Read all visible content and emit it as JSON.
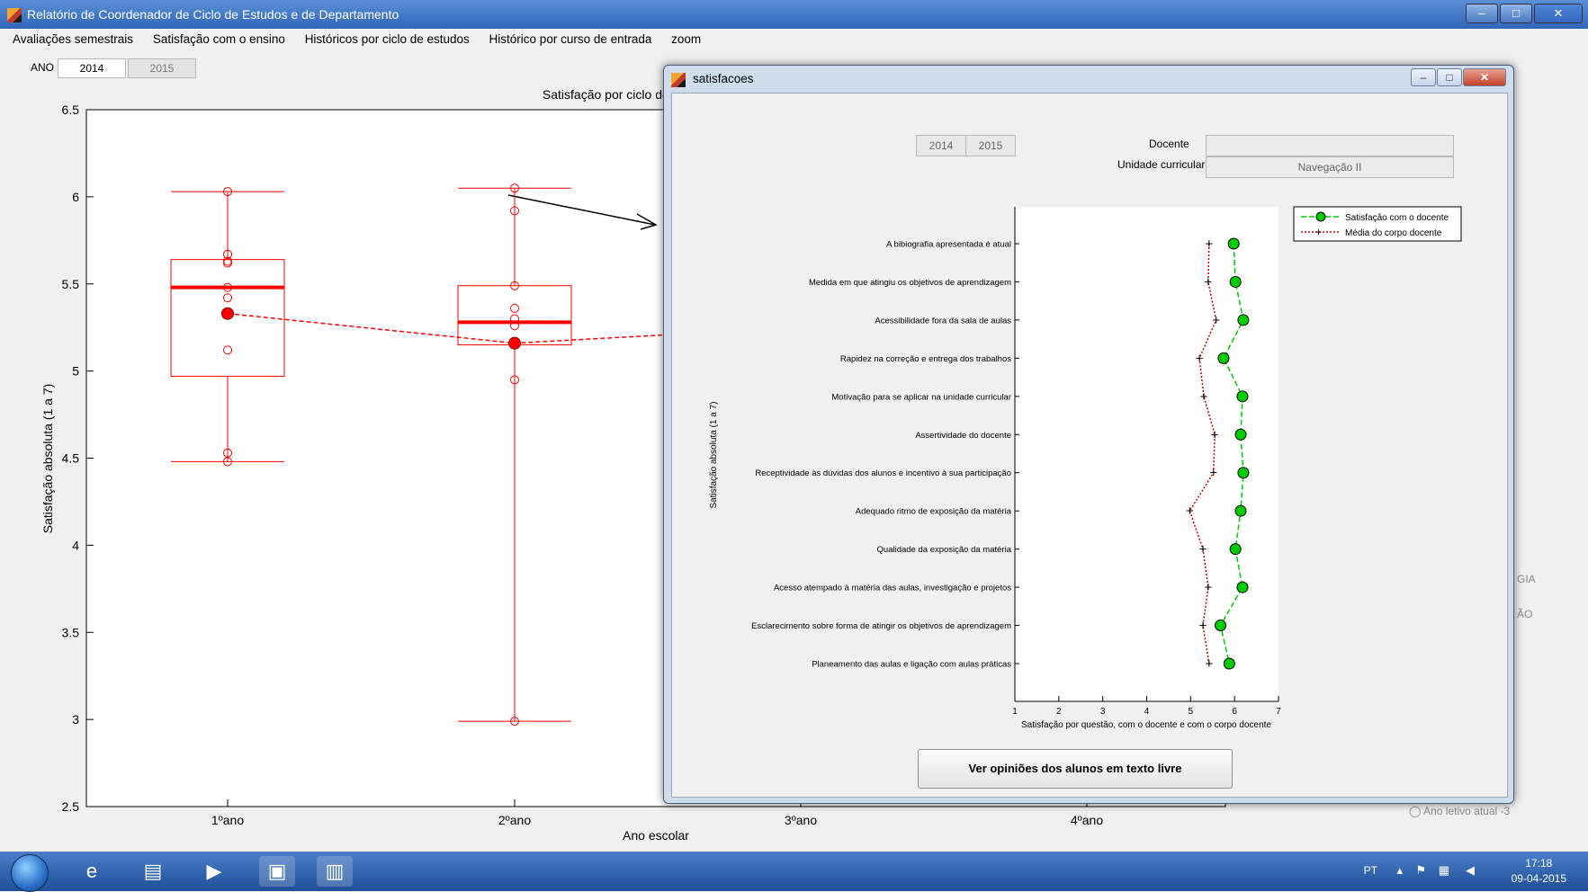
{
  "window": {
    "title": "Relatório de Coordenador de Ciclo de Estudos e de Departamento",
    "controls": {
      "minimize": "–",
      "maximize": "□",
      "close": "✕"
    }
  },
  "menu": [
    "Avaliações semestrais",
    "Satisfação com o ensino",
    "Históricos por ciclo de estudos",
    "Histórico por curso de entrada",
    "zoom"
  ],
  "year_filter": {
    "label": "ANO",
    "selected": "2014",
    "other": "2015"
  },
  "main_plot": {
    "title": "Satisfação por ciclo de estudos e ano de",
    "ylabel": "Satisfação absoluta (1 a 7)",
    "xlabel": "Ano escolar",
    "yticks": [
      "2.5",
      "3",
      "3.5",
      "4",
      "4.5",
      "5",
      "5.5",
      "6",
      "6.5"
    ],
    "xticks": [
      "1ºano",
      "2ºano",
      "3ºano",
      "4ºano"
    ]
  },
  "right_panel": {
    "frag1": "GIA",
    "frag2": "ÃO",
    "radio_label": "Ano letivo atual -3"
  },
  "dialog": {
    "title": "satisfacoes",
    "years": [
      "2014",
      "2015"
    ],
    "docente_label": "Docente",
    "docente_value": "",
    "uc_label": "Unidade curricular",
    "uc_value": "Navegação II",
    "button_label": "Ver opiniões dos alunos em texto livre"
  },
  "chart_data": [
    {
      "type": "box",
      "title": "Satisfação por ciclo de estudos e ano de",
      "xlabel": "Ano escolar",
      "ylabel": "Satisfação absoluta (1 a 7)",
      "ylim": [
        2.5,
        6.5
      ],
      "categories": [
        "1ºano",
        "2ºano",
        "3ºano",
        "4ºano"
      ],
      "boxes": [
        {
          "category": "1ºano",
          "min": 4.48,
          "q1": 4.97,
          "median": 5.48,
          "q3": 5.64,
          "max": 6.03,
          "mean": 5.33,
          "points": [
            6.03,
            5.67,
            5.63,
            5.62,
            5.48,
            5.42,
            5.12,
            4.53,
            4.48
          ]
        },
        {
          "category": "2ºano",
          "min": 2.99,
          "q1": 5.15,
          "median": 5.28,
          "q3": 5.49,
          "max": 6.05,
          "mean": 5.16,
          "points": [
            6.05,
            5.92,
            5.49,
            5.36,
            5.3,
            5.26,
            5.16,
            4.95,
            2.99
          ]
        }
      ],
      "mean_line": [
        {
          "x": "1ºano",
          "y": 5.33
        },
        {
          "x": "2ºano",
          "y": 5.16
        },
        {
          "x": "3ºano",
          "y": 5.25
        }
      ]
    },
    {
      "type": "line",
      "orientation": "horizontal",
      "ylabel": "Satisfação absoluta (1 a 7)",
      "xlabel": "Satisfação por questão, com o docente e com o corpo docente",
      "xlim": [
        1,
        7
      ],
      "xticks": [
        "1",
        "2",
        "3",
        "4",
        "5",
        "6",
        "7"
      ],
      "categories": [
        "A bibiografia apresentada é atual",
        "Medida em que atingiu os objetivos de aprendizagem",
        "Acessibilidade fora da sala de aulas",
        "Rapidez na correção e entrega dos trabalhos",
        "Motivação para se aplicar na unidade curricular",
        "Assertividade do docente",
        "Receptividade às dúvidas dos alunos e incentivo à sua participação",
        "Adequado ritmo de exposição da matéria",
        "Qualidade da exposição da matéria",
        "Acesso atempado à matéria das aulas, investigação e projetos",
        "Esclarecimento sobre forma de atingir os objetivos de aprendizagem",
        "Planeamento das aulas e ligação com aulas práticas"
      ],
      "series": [
        {
          "name": "Satisfação com o docente",
          "color": "#00cc00",
          "values": [
            5.98,
            6.02,
            6.2,
            5.75,
            6.18,
            6.14,
            6.2,
            6.14,
            6.02,
            6.18,
            5.68,
            5.88
          ]
        },
        {
          "name": "Média do corpo docente",
          "color": "#cc0000",
          "values": [
            5.42,
            5.4,
            5.58,
            5.2,
            5.3,
            5.55,
            5.52,
            4.98,
            5.28,
            5.4,
            5.28,
            5.42
          ]
        }
      ],
      "legend": "top-right"
    }
  ],
  "taskbar": {
    "lang": "PT",
    "time": "17:18",
    "date": "09-04-2015"
  }
}
